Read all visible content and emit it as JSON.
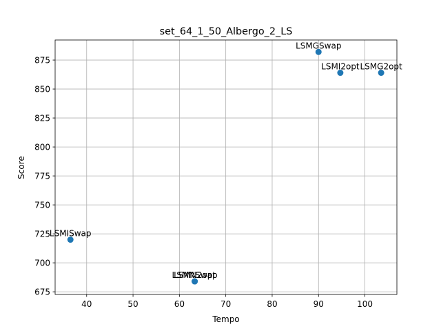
{
  "chart_data": {
    "type": "scatter",
    "title": "set_64_1_50_Albergo_2_LS",
    "xlabel": "Tempo",
    "ylabel": "Score",
    "xlim": [
      33.2,
      106.9
    ],
    "ylim": [
      672.7,
      892.3
    ],
    "xticks": [
      40,
      50,
      60,
      70,
      80,
      90,
      100
    ],
    "yticks": [
      675,
      700,
      725,
      750,
      775,
      800,
      825,
      850,
      875
    ],
    "grid": true,
    "color": "#1f77b4",
    "points": [
      {
        "label": "LSMGSwap",
        "x": 90.0,
        "y": 882
      },
      {
        "label": "LSMI2opt",
        "x": 94.7,
        "y": 864
      },
      {
        "label": "LSMG2opt",
        "x": 103.5,
        "y": 864
      },
      {
        "label": "LSMISwap",
        "x": 36.5,
        "y": 720
      },
      {
        "label": "LSMN2opt",
        "x": 63.3,
        "y": 684
      },
      {
        "label": "LSMNSwap",
        "x": 63.3,
        "y": 684
      }
    ]
  }
}
